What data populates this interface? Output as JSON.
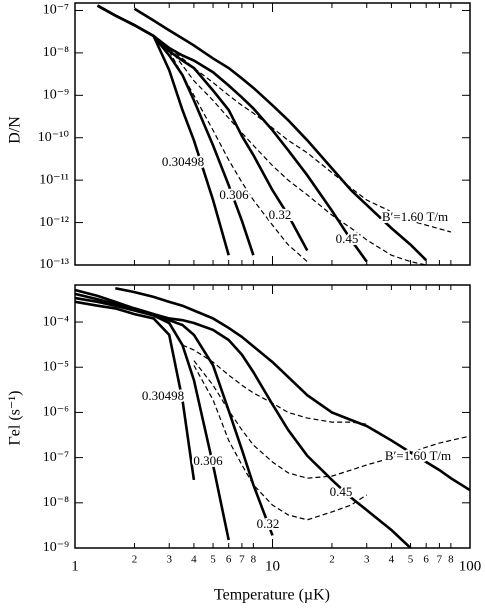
{
  "chart_data": [
    {
      "type": "line",
      "ylabel": "D/N",
      "xscale": "log",
      "yscale": "log",
      "xlim": [
        1,
        100
      ],
      "ylim": [
        1e-13,
        1.5e-07
      ],
      "yticks": [
        {
          "value": 1e-13,
          "label": "10⁻¹³"
        },
        {
          "value": 1e-12,
          "label": "10⁻¹²"
        },
        {
          "value": 1e-11,
          "label": "10⁻¹¹"
        },
        {
          "value": 1e-10,
          "label": "10⁻¹⁰"
        },
        {
          "value": 1e-09,
          "label": "10⁻⁹"
        },
        {
          "value": 1e-08,
          "label": "10⁻⁸"
        },
        {
          "value": 1e-07,
          "label": "10⁻⁷"
        }
      ],
      "x": [
        1.3,
        1.6,
        2,
        2.5,
        3,
        3.5,
        4,
        5,
        6,
        7,
        8,
        10,
        12,
        15,
        20,
        25,
        30,
        40,
        50,
        60,
        80
      ],
      "series": [
        {
          "name": "0.30498",
          "color": "#000000",
          "linestyle": "solid",
          "values": [
            1.3e-07,
            7.6e-08,
            4.5e-08,
            2.5e-08,
            3.9e-09,
            4.5e-10,
            8.7e-11,
            3.4e-12,
            1.7e-13,
            null,
            null,
            null,
            null,
            null,
            null,
            null,
            null,
            null,
            null,
            null,
            null
          ]
        },
        {
          "name": "0.306",
          "color": "#000000",
          "linestyle": "solid",
          "values": [
            1.3e-07,
            7.6e-08,
            4.5e-08,
            2.5e-08,
            8.7e-09,
            3e-09,
            7.6e-10,
            6.6e-11,
            7.6e-12,
            1.1e-12,
            1.7e-13,
            null,
            null,
            null,
            null,
            null,
            null,
            null,
            null,
            null,
            null
          ]
        },
        {
          "name": "0.32",
          "color": "#000000",
          "linestyle": "solid",
          "values": [
            1.3e-07,
            7.6e-08,
            4.5e-08,
            2.5e-08,
            1.1e-08,
            6.6e-09,
            4.4e-09,
            1.3e-09,
            4.5e-10,
            1.1e-10,
            3.9e-11,
            5.8e-12,
            1.5e-12,
            2.2e-13,
            null,
            null,
            null,
            null,
            null,
            null,
            null
          ]
        },
        {
          "name": "0.45",
          "color": "#000000",
          "linestyle": "solid",
          "values": [
            1.3e-07,
            7.6e-08,
            4.5e-08,
            2.5e-08,
            1.3e-08,
            8.7e-09,
            6.6e-09,
            3.5e-09,
            1.7e-09,
            8.9e-10,
            4.9e-10,
            1.5e-10,
            5.1e-11,
            1.3e-11,
            1.9e-12,
            3.9e-13,
            1.2e-13,
            null,
            null,
            null,
            null
          ]
        },
        {
          "name": "B′=1.60 T/m",
          "color": "#000000",
          "linestyle": "solid",
          "values": [
            null,
            null,
            1.1e-07,
            5.8e-08,
            3.4e-08,
            2.2e-08,
            1.5e-08,
            7.4e-09,
            4.4e-09,
            2.5e-09,
            1.5e-09,
            5.8e-10,
            2.6e-10,
            8.7e-11,
            1.9e-11,
            5.8e-12,
            2.6e-12,
            7.4e-13,
            3e-13,
            1.3e-13,
            null
          ]
        },
        {
          "color": "#000000",
          "linestyle": "dashed",
          "values": [
            null,
            null,
            null,
            null,
            1.1e-08,
            3e-09,
            1e-09,
            1.5e-10,
            3e-11,
            8.9e-12,
            3.4e-12,
            8.7e-13,
            3e-13,
            1.2e-13,
            null,
            null,
            null,
            null,
            null,
            null,
            null
          ]
        },
        {
          "color": "#000000",
          "linestyle": "dashed",
          "values": [
            null,
            null,
            null,
            null,
            1.3e-08,
            5.1e-09,
            2.2e-09,
            7.6e-10,
            2.9e-10,
            1.3e-10,
            6.6e-11,
            2.2e-11,
            1e-11,
            4.5e-12,
            1.5e-12,
            7.4e-13,
            3.9e-13,
            1.7e-13,
            1.2e-13,
            1e-13,
            null
          ]
        },
        {
          "color": "#000000",
          "linestyle": "dashed",
          "values": [
            null,
            null,
            null,
            null,
            1.3e-08,
            7.4e-09,
            4.4e-09,
            2e-09,
            1e-09,
            5.8e-10,
            3.8e-10,
            1.7e-10,
            8.7e-11,
            4.4e-11,
            1.5e-11,
            6.5e-12,
            3.4e-12,
            1.8e-12,
            1.1e-12,
            8.7e-13,
            6e-13
          ]
        }
      ]
    },
    {
      "type": "line",
      "ylabel": "Γel (s⁻¹)",
      "xlabel": "Temperature (µK)",
      "xscale": "log",
      "yscale": "log",
      "xlim": [
        1,
        100
      ],
      "ylim": [
        1e-09,
        0.00066
      ],
      "xticks": [
        1,
        2,
        3,
        4,
        5,
        6,
        7,
        8,
        10,
        {
          "value": 20,
          "label": "2"
        },
        {
          "value": 30,
          "label": "3"
        },
        {
          "value": 40,
          "label": "4"
        },
        {
          "value": 50,
          "label": "5"
        },
        {
          "value": 60,
          "label": "6"
        },
        {
          "value": 70,
          "label": "7"
        },
        {
          "value": 80,
          "label": "8"
        },
        100
      ],
      "yticks": [
        {
          "value": 1e-09,
          "label": "10⁻⁹"
        },
        {
          "value": 1e-08,
          "label": "10⁻⁸"
        },
        {
          "value": 1e-07,
          "label": "10⁻⁷"
        },
        {
          "value": 1e-06,
          "label": "10⁻⁶"
        },
        {
          "value": 1e-05,
          "label": "10⁻⁵"
        },
        {
          "value": 0.0001,
          "label": "10⁻⁴"
        }
      ],
      "x": [
        1,
        1.3,
        1.6,
        2,
        2.5,
        3,
        3.5,
        4,
        5,
        6,
        7,
        8,
        10,
        12,
        15,
        20,
        25,
        30,
        40,
        50,
        60,
        70,
        80,
        100
      ],
      "series": [
        {
          "name": "0.30498",
          "color": "#000000",
          "linestyle": "solid",
          "values": [
            0.00028,
            0.00023,
            0.0002,
            0.00015,
            0.00012,
            5.2e-05,
            1.9e-06,
            3.2e-08,
            null,
            null,
            null,
            null,
            null,
            null,
            null,
            null,
            null,
            null,
            null,
            null,
            null,
            null,
            null,
            null
          ]
        },
        {
          "name": "0.306",
          "color": "#000000",
          "linestyle": "solid",
          "values": [
            0.00034,
            0.00028,
            0.00023,
            0.00018,
            0.00014,
            9.5e-05,
            3.1e-05,
            5.2e-06,
            6.9e-08,
            1.5e-09,
            null,
            null,
            null,
            null,
            null,
            null,
            null,
            null,
            null,
            null,
            null,
            null,
            null,
            null
          ]
        },
        {
          "name": "0.32",
          "color": "#000000",
          "linestyle": "solid",
          "values": [
            0.00042,
            0.00032,
            0.00025,
            0.0002,
            0.00015,
            0.00011,
            8.6e-05,
            5.2e-05,
            1.1e-05,
            1.1e-06,
            1.5e-07,
            2.5e-08,
            1.9e-09,
            null,
            null,
            null,
            null,
            null,
            null,
            null,
            null,
            null,
            null,
            null
          ]
        },
        {
          "name": "0.45",
          "color": "#000000",
          "linestyle": "solid",
          "values": [
            0.00051,
            0.00038,
            0.00028,
            0.0002,
            0.00015,
            0.00012,
            0.00011,
            9.5e-05,
            6.7e-05,
            4e-05,
            1.9e-05,
            7.8e-06,
            1.5e-06,
            4.1e-07,
            1.1e-07,
            3.2e-08,
            1.3e-08,
            6.9e-09,
            2.5e-09,
            1e-09,
            null,
            null,
            null,
            null
          ]
        },
        {
          "name": "B′=1.60 T/m",
          "color": "#000000",
          "linestyle": "solid",
          "values": [
            null,
            null,
            0.00056,
            0.00046,
            0.00036,
            0.00028,
            0.00023,
            0.00018,
            0.00012,
            7.4e-05,
            4.7e-05,
            2.9e-05,
            1.3e-05,
            6.1e-06,
            2.4e-06,
            1e-06,
            6.8e-07,
            5e-07,
            2.4e-07,
            1.3e-07,
            8e-08,
            5.3e-08,
            3.5e-08,
            1.9e-08
          ]
        },
        {
          "color": "#000000",
          "linestyle": "dashed",
          "values": [
            null,
            null,
            null,
            null,
            null,
            null,
            null,
            1.1e-05,
            1.9e-06,
            2.4e-07,
            6.9e-08,
            2.5e-08,
            8.9e-09,
            5.4e-09,
            4.2e-09,
            6.3e-09,
            8.9e-09,
            1.5e-08,
            null,
            null,
            null,
            null,
            null,
            null
          ]
        },
        {
          "color": "#000000",
          "linestyle": "dashed",
          "values": [
            null,
            null,
            null,
            null,
            null,
            null,
            null,
            1.4e-05,
            4e-06,
            1.1e-06,
            4.1e-07,
            1.9e-07,
            8e-08,
            4.6e-08,
            3.5e-08,
            3.9e-08,
            5.3e-08,
            6.9e-08,
            9.8e-08,
            1.3e-07,
            1.7e-07,
            2.1e-07,
            2.4e-07,
            3e-07
          ]
        },
        {
          "color": "#000000",
          "linestyle": "dashed",
          "values": [
            null,
            null,
            null,
            null,
            null,
            null,
            3.1e-05,
            2.4e-05,
            1.3e-05,
            6.7e-06,
            4e-06,
            2.7e-06,
            1.6e-06,
            1e-06,
            7.5e-07,
            6.1e-07,
            6.1e-07,
            5.5e-07,
            null,
            null,
            null,
            null,
            null,
            null
          ]
        }
      ]
    }
  ]
}
